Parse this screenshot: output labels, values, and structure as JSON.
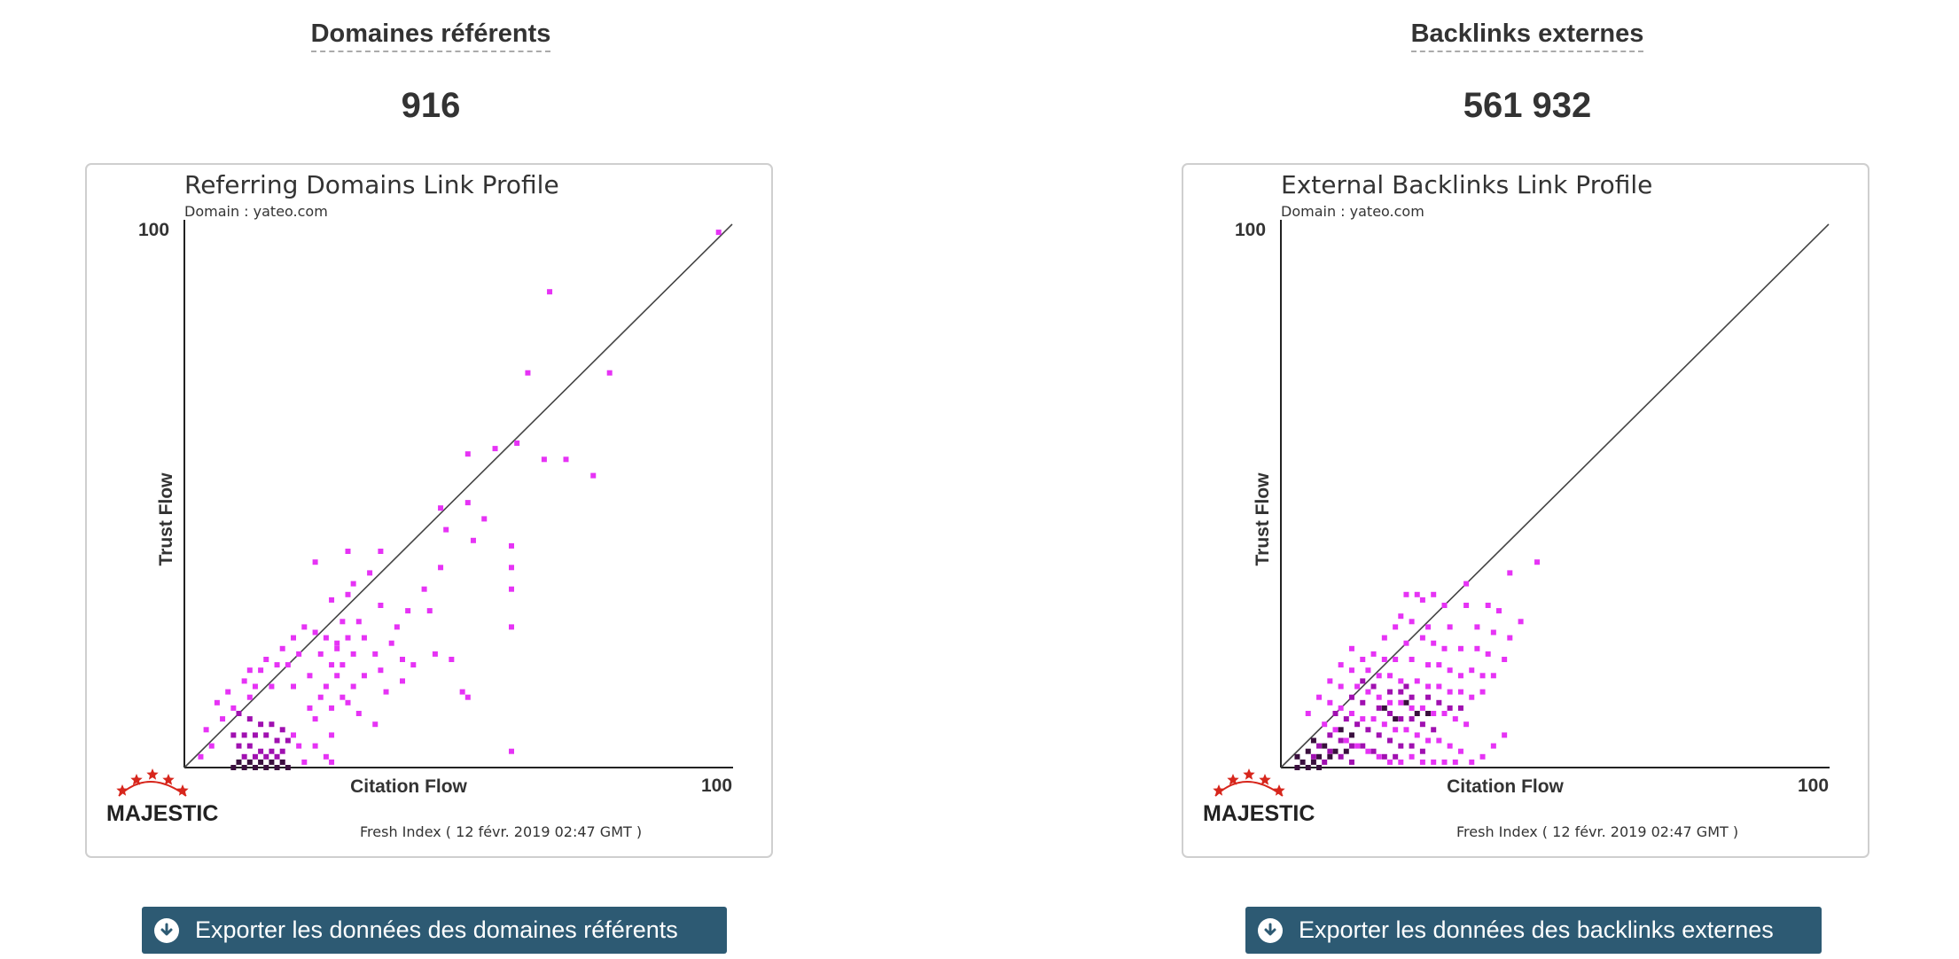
{
  "colors": {
    "button_bg": "#2d5a73",
    "point_light": "#e633f5",
    "point_mid": "#a010b0",
    "point_dark": "#3a0f3e",
    "brand_star": "#d7261c"
  },
  "panels": [
    {
      "id": "referring",
      "metric_title": "Domaines référents",
      "metric_value": "916",
      "export_label": "Exporter les données des domaines référents",
      "export_icon": "download-circle-icon",
      "chart": {
        "title": "Referring Domains Link Profile",
        "subtitle": "Domain : yateo.com",
        "y_label": "Trust Flow",
        "x_label": "Citation Flow",
        "y_max_label": "100",
        "x_max_label": "100",
        "brand": "MAJESTIC",
        "fresh_index": "Fresh Index ( 12 févr. 2019 02:47 GMT )"
      }
    },
    {
      "id": "backlinks",
      "metric_title": "Backlinks externes",
      "metric_value": "561 932",
      "export_label": "Exporter les données des backlinks externes",
      "export_icon": "download-circle-icon",
      "chart": {
        "title": "External Backlinks Link Profile",
        "subtitle": "Domain : yateo.com",
        "y_label": "Trust Flow",
        "x_label": "Citation Flow",
        "y_max_label": "100",
        "x_max_label": "100",
        "brand": "MAJESTIC",
        "fresh_index": "Fresh Index ( 12 févr. 2019 02:47 GMT )"
      }
    }
  ],
  "chart_data": [
    {
      "type": "heatmap",
      "title": "Referring Domains Link Profile",
      "subtitle": "Domain : yateo.com",
      "xlabel": "Citation Flow",
      "ylabel": "Trust Flow",
      "xlim": [
        0,
        100
      ],
      "ylim": [
        0,
        100
      ],
      "diagonal": true,
      "point_columns": [
        "citation_flow",
        "trust_flow",
        "density"
      ],
      "points": [
        [
          98,
          99,
          1
        ],
        [
          67,
          88,
          1
        ],
        [
          63,
          73,
          1
        ],
        [
          78,
          73,
          1
        ],
        [
          61,
          60,
          1
        ],
        [
          52,
          58,
          1
        ],
        [
          57,
          59,
          1
        ],
        [
          66,
          57,
          1
        ],
        [
          70,
          57,
          1
        ],
        [
          75,
          54,
          1
        ],
        [
          47,
          48,
          1
        ],
        [
          52,
          49,
          1
        ],
        [
          55,
          46,
          1
        ],
        [
          48,
          44,
          1
        ],
        [
          53,
          42,
          1
        ],
        [
          60,
          41,
          1
        ],
        [
          30,
          40,
          1
        ],
        [
          36,
          40,
          1
        ],
        [
          24,
          38,
          1
        ],
        [
          34,
          36,
          1
        ],
        [
          47,
          37,
          1
        ],
        [
          60,
          37,
          1
        ],
        [
          31,
          34,
          1
        ],
        [
          44,
          33,
          1
        ],
        [
          60,
          33,
          1
        ],
        [
          30,
          32,
          1
        ],
        [
          27,
          31,
          1
        ],
        [
          36,
          30,
          1
        ],
        [
          41,
          29,
          1
        ],
        [
          45,
          29,
          1
        ],
        [
          60,
          26,
          1
        ],
        [
          29,
          27,
          1
        ],
        [
          32,
          27,
          1
        ],
        [
          39,
          26,
          1
        ],
        [
          20,
          24,
          1
        ],
        [
          22,
          26,
          1
        ],
        [
          24,
          25,
          1
        ],
        [
          26,
          24,
          1
        ],
        [
          28,
          23,
          1
        ],
        [
          30,
          24,
          1
        ],
        [
          33,
          24,
          1
        ],
        [
          38,
          23,
          1
        ],
        [
          18,
          22,
          1
        ],
        [
          21,
          21,
          1
        ],
        [
          25,
          21,
          1
        ],
        [
          28,
          22,
          1
        ],
        [
          31,
          21,
          1
        ],
        [
          35,
          21,
          1
        ],
        [
          40,
          20,
          1
        ],
        [
          46,
          21,
          1
        ],
        [
          49,
          20,
          1
        ],
        [
          15,
          20,
          1
        ],
        [
          17,
          19,
          1
        ],
        [
          19,
          19,
          1
        ],
        [
          27,
          19,
          1
        ],
        [
          29,
          19,
          1
        ],
        [
          36,
          18,
          1
        ],
        [
          42,
          19,
          1
        ],
        [
          12,
          18,
          1
        ],
        [
          14,
          18,
          1
        ],
        [
          23,
          17,
          1
        ],
        [
          28,
          17,
          1
        ],
        [
          33,
          17,
          1
        ],
        [
          40,
          16,
          1
        ],
        [
          11,
          16,
          1
        ],
        [
          13,
          15,
          1
        ],
        [
          16,
          15,
          1
        ],
        [
          20,
          15,
          1
        ],
        [
          26,
          15,
          1
        ],
        [
          31,
          15,
          1
        ],
        [
          37,
          14,
          1
        ],
        [
          51,
          14,
          1
        ],
        [
          8,
          14,
          1
        ],
        [
          12,
          13,
          1
        ],
        [
          25,
          13,
          1
        ],
        [
          29,
          13,
          1
        ],
        [
          30,
          12,
          1
        ],
        [
          52,
          13,
          1
        ],
        [
          6,
          12,
          1
        ],
        [
          9,
          11,
          1
        ],
        [
          23,
          11,
          1
        ],
        [
          27,
          11,
          1
        ],
        [
          32,
          10,
          1
        ],
        [
          7,
          9,
          1
        ],
        [
          24,
          9,
          1
        ],
        [
          35,
          8,
          1
        ],
        [
          4,
          7,
          1
        ],
        [
          20,
          6,
          1
        ],
        [
          27,
          6,
          1
        ],
        [
          5,
          4,
          1
        ],
        [
          21,
          4,
          1
        ],
        [
          24,
          4,
          1
        ],
        [
          26,
          2,
          1
        ],
        [
          60,
          3,
          1
        ],
        [
          3,
          2,
          1
        ],
        [
          27,
          1,
          1
        ],
        [
          18,
          1,
          1
        ],
        [
          22,
          1,
          1
        ],
        [
          10,
          10,
          2
        ],
        [
          12,
          9,
          2
        ],
        [
          14,
          8,
          2
        ],
        [
          16,
          8,
          2
        ],
        [
          18,
          7,
          2
        ],
        [
          9,
          6,
          2
        ],
        [
          11,
          6,
          2
        ],
        [
          13,
          6,
          2
        ],
        [
          15,
          6,
          2
        ],
        [
          17,
          5,
          2
        ],
        [
          19,
          5,
          2
        ],
        [
          10,
          4,
          2
        ],
        [
          12,
          4,
          2
        ],
        [
          14,
          3,
          2
        ],
        [
          16,
          3,
          2
        ],
        [
          18,
          3,
          2
        ],
        [
          11,
          2,
          2
        ],
        [
          13,
          2,
          2
        ],
        [
          15,
          2,
          2
        ],
        [
          17,
          2,
          2
        ],
        [
          14,
          1,
          3
        ],
        [
          16,
          1,
          3
        ],
        [
          18,
          1,
          3
        ],
        [
          12,
          1,
          3
        ],
        [
          10,
          1,
          3
        ],
        [
          15,
          0,
          3
        ],
        [
          13,
          0,
          3
        ],
        [
          11,
          0,
          3
        ],
        [
          17,
          0,
          3
        ],
        [
          9,
          0,
          3
        ],
        [
          19,
          0,
          3
        ]
      ]
    },
    {
      "type": "heatmap",
      "title": "External Backlinks Link Profile",
      "subtitle": "Domain : yateo.com",
      "xlabel": "Citation Flow",
      "ylabel": "Trust Flow",
      "xlim": [
        0,
        100
      ],
      "ylim": [
        0,
        100
      ],
      "diagonal": true,
      "point_columns": [
        "citation_flow",
        "trust_flow",
        "density"
      ],
      "points": [
        [
          47,
          38,
          1
        ],
        [
          42,
          36,
          1
        ],
        [
          34,
          34,
          1
        ],
        [
          23,
          32,
          1
        ],
        [
          25,
          32,
          1
        ],
        [
          26,
          31,
          1
        ],
        [
          28,
          32,
          1
        ],
        [
          30,
          30,
          1
        ],
        [
          34,
          30,
          1
        ],
        [
          38,
          30,
          1
        ],
        [
          40,
          29,
          1
        ],
        [
          44,
          27,
          1
        ],
        [
          22,
          28,
          1
        ],
        [
          24,
          27,
          1
        ],
        [
          21,
          26,
          1
        ],
        [
          27,
          26,
          1
        ],
        [
          31,
          26,
          1
        ],
        [
          36,
          26,
          1
        ],
        [
          39,
          25,
          1
        ],
        [
          42,
          24,
          1
        ],
        [
          19,
          24,
          1
        ],
        [
          23,
          23,
          1
        ],
        [
          26,
          24,
          1
        ],
        [
          28,
          23,
          1
        ],
        [
          30,
          22,
          1
        ],
        [
          33,
          22,
          1
        ],
        [
          36,
          22,
          1
        ],
        [
          38,
          21,
          1
        ],
        [
          41,
          20,
          1
        ],
        [
          13,
          22,
          1
        ],
        [
          15,
          20,
          1
        ],
        [
          17,
          21,
          1
        ],
        [
          19,
          20,
          1
        ],
        [
          21,
          20,
          1
        ],
        [
          24,
          20,
          1
        ],
        [
          27,
          19,
          1
        ],
        [
          29,
          19,
          1
        ],
        [
          31,
          18,
          1
        ],
        [
          33,
          17,
          1
        ],
        [
          35,
          18,
          1
        ],
        [
          37,
          17,
          1
        ],
        [
          39,
          17,
          1
        ],
        [
          11,
          19,
          1
        ],
        [
          13,
          18,
          1
        ],
        [
          16,
          18,
          1
        ],
        [
          18,
          17,
          1
        ],
        [
          20,
          17,
          1
        ],
        [
          22,
          16,
          1
        ],
        [
          25,
          16,
          1
        ],
        [
          27,
          15,
          1
        ],
        [
          29,
          15,
          1
        ],
        [
          31,
          14,
          1
        ],
        [
          33,
          14,
          1
        ],
        [
          35,
          13,
          1
        ],
        [
          37,
          14,
          1
        ],
        [
          9,
          16,
          1
        ],
        [
          11,
          15,
          1
        ],
        [
          14,
          15,
          1
        ],
        [
          16,
          14,
          1
        ],
        [
          18,
          13,
          1
        ],
        [
          20,
          12,
          1
        ],
        [
          22,
          12,
          1
        ],
        [
          24,
          11,
          1
        ],
        [
          26,
          11,
          1
        ],
        [
          28,
          10,
          1
        ],
        [
          30,
          10,
          1
        ],
        [
          32,
          9,
          1
        ],
        [
          34,
          8,
          1
        ],
        [
          7,
          13,
          1
        ],
        [
          9,
          12,
          1
        ],
        [
          11,
          11,
          1
        ],
        [
          13,
          10,
          1
        ],
        [
          15,
          9,
          1
        ],
        [
          17,
          9,
          1
        ],
        [
          19,
          8,
          1
        ],
        [
          21,
          7,
          1
        ],
        [
          23,
          7,
          1
        ],
        [
          25,
          6,
          1
        ],
        [
          27,
          5,
          1
        ],
        [
          29,
          5,
          1
        ],
        [
          31,
          4,
          1
        ],
        [
          33,
          3,
          1
        ],
        [
          5,
          10,
          1
        ],
        [
          8,
          8,
          1
        ],
        [
          10,
          7,
          1
        ],
        [
          12,
          5,
          1
        ],
        [
          14,
          4,
          1
        ],
        [
          16,
          3,
          1
        ],
        [
          18,
          2,
          1
        ],
        [
          20,
          1,
          1
        ],
        [
          22,
          1,
          1
        ],
        [
          24,
          2,
          1
        ],
        [
          26,
          1,
          1
        ],
        [
          28,
          1,
          1
        ],
        [
          30,
          1,
          1
        ],
        [
          32,
          1,
          1
        ],
        [
          35,
          1,
          1
        ],
        [
          37,
          2,
          1
        ],
        [
          39,
          4,
          1
        ],
        [
          41,
          6,
          1
        ],
        [
          15,
          16,
          2
        ],
        [
          17,
          15,
          2
        ],
        [
          20,
          14,
          2
        ],
        [
          22,
          14,
          2
        ],
        [
          24,
          13,
          2
        ],
        [
          27,
          13,
          2
        ],
        [
          29,
          12,
          2
        ],
        [
          31,
          11,
          2
        ],
        [
          33,
          11,
          2
        ],
        [
          13,
          13,
          2
        ],
        [
          15,
          12,
          2
        ],
        [
          18,
          11,
          2
        ],
        [
          20,
          10,
          2
        ],
        [
          22,
          9,
          2
        ],
        [
          24,
          9,
          2
        ],
        [
          26,
          8,
          2
        ],
        [
          28,
          7,
          2
        ],
        [
          10,
          10,
          2
        ],
        [
          12,
          9,
          2
        ],
        [
          14,
          8,
          2
        ],
        [
          16,
          7,
          2
        ],
        [
          18,
          6,
          2
        ],
        [
          20,
          5,
          2
        ],
        [
          22,
          4,
          2
        ],
        [
          24,
          4,
          2
        ],
        [
          26,
          3,
          2
        ],
        [
          9,
          6,
          2
        ],
        [
          11,
          5,
          2
        ],
        [
          13,
          4,
          2
        ],
        [
          15,
          4,
          2
        ],
        [
          17,
          3,
          2
        ],
        [
          19,
          2,
          2
        ],
        [
          21,
          2,
          2
        ],
        [
          7,
          4,
          2
        ],
        [
          9,
          3,
          2
        ],
        [
          11,
          2,
          2
        ],
        [
          13,
          1,
          2
        ],
        [
          6,
          2,
          2
        ],
        [
          8,
          1,
          2
        ],
        [
          23,
          15,
          2
        ],
        [
          4,
          1,
          3
        ],
        [
          6,
          1,
          3
        ],
        [
          3,
          2,
          3
        ],
        [
          5,
          3,
          3
        ],
        [
          7,
          2,
          3
        ],
        [
          8,
          4,
          3
        ],
        [
          10,
          3,
          3
        ],
        [
          6,
          5,
          3
        ],
        [
          12,
          3,
          3
        ],
        [
          9,
          2,
          3
        ],
        [
          11,
          7,
          3
        ],
        [
          13,
          6,
          3
        ],
        [
          19,
          11,
          3
        ],
        [
          21,
          9,
          3
        ],
        [
          23,
          12,
          3
        ],
        [
          25,
          10,
          3
        ],
        [
          27,
          10,
          3
        ],
        [
          3,
          0,
          3
        ],
        [
          5,
          0,
          3
        ],
        [
          7,
          0,
          3
        ]
      ]
    }
  ]
}
